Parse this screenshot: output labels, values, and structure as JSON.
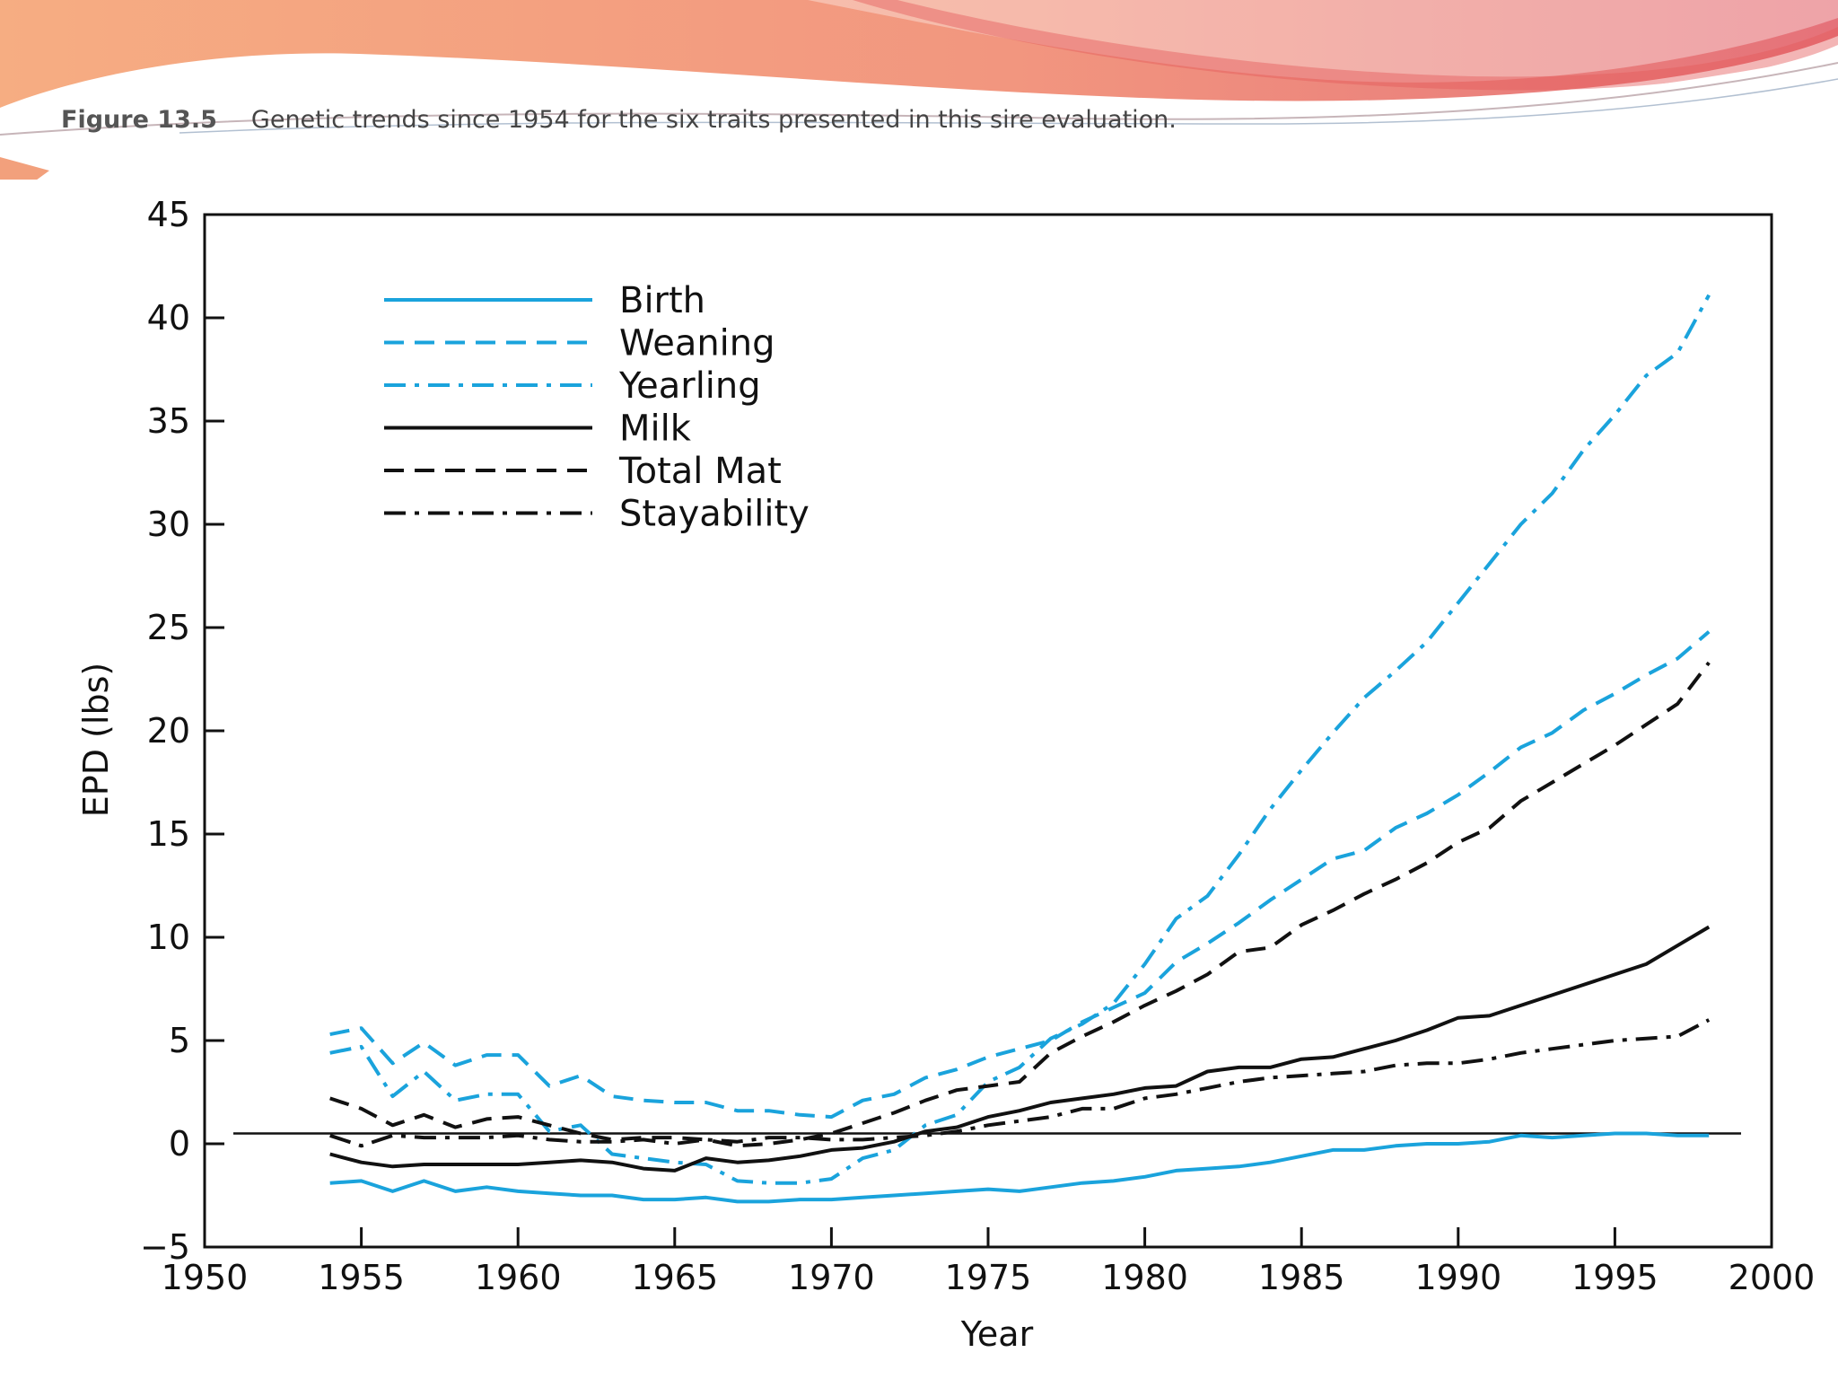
{
  "caption": {
    "label": "Figure 13.5",
    "text": "Genetic trends since 1954 for the six traits presented in this sire evaluation."
  },
  "colors": {
    "blue": "#1aa3dc",
    "black": "#111111",
    "banner_orange": "#f4a47d",
    "banner_red": "#e77a7a"
  },
  "chart_data": {
    "type": "line",
    "title": "",
    "xlabel": "Year",
    "ylabel": "EPD (lbs)",
    "xlim": [
      1950,
      2000
    ],
    "ylim": [
      -5,
      45
    ],
    "xticks": [
      1950,
      1955,
      1960,
      1965,
      1970,
      1975,
      1980,
      1985,
      1990,
      1995,
      2000
    ],
    "yticks": [
      -5,
      0,
      5,
      10,
      15,
      20,
      25,
      30,
      35,
      40,
      45
    ],
    "xtick_labels": [
      "1950",
      "1955",
      "1960",
      "1965",
      "1970",
      "1975",
      "1980",
      "1985",
      "1990",
      "1995",
      "2000"
    ],
    "ytick_labels": [
      "−5",
      "0",
      "5",
      "10",
      "15",
      "20",
      "25",
      "30",
      "35",
      "40",
      "45"
    ],
    "reference_line_y": 0.5,
    "grid": false,
    "legend_position": "top-left",
    "series": [
      {
        "name": "Birth",
        "color": "#1aa3dc",
        "style": "solid",
        "x": [
          1954,
          1955,
          1956,
          1957,
          1958,
          1959,
          1960,
          1961,
          1962,
          1963,
          1964,
          1965,
          1966,
          1967,
          1968,
          1969,
          1970,
          1971,
          1972,
          1973,
          1974,
          1975,
          1976,
          1977,
          1978,
          1979,
          1980,
          1981,
          1982,
          1983,
          1984,
          1985,
          1986,
          1987,
          1988,
          1989,
          1990,
          1991,
          1992,
          1993,
          1994,
          1995,
          1996,
          1997,
          1998
        ],
        "y": [
          -1.9,
          -1.8,
          -2.3,
          -1.8,
          -2.3,
          -2.1,
          -2.3,
          -2.4,
          -2.5,
          -2.5,
          -2.7,
          -2.7,
          -2.6,
          -2.8,
          -2.8,
          -2.7,
          -2.7,
          -2.6,
          -2.5,
          -2.4,
          -2.3,
          -2.2,
          -2.3,
          -2.1,
          -1.9,
          -1.8,
          -1.6,
          -1.3,
          -1.2,
          -1.1,
          -0.9,
          -0.6,
          -0.3,
          -0.3,
          -0.1,
          0.0,
          0.0,
          0.1,
          0.4,
          0.3,
          0.4,
          0.5,
          0.5,
          0.4,
          0.4
        ]
      },
      {
        "name": "Weaning",
        "color": "#1aa3dc",
        "style": "dashed",
        "x": [
          1954,
          1955,
          1956,
          1957,
          1958,
          1959,
          1960,
          1961,
          1962,
          1963,
          1964,
          1965,
          1966,
          1967,
          1968,
          1969,
          1970,
          1971,
          1972,
          1973,
          1974,
          1975,
          1976,
          1977,
          1978,
          1979,
          1980,
          1981,
          1982,
          1983,
          1984,
          1985,
          1986,
          1987,
          1988,
          1989,
          1990,
          1991,
          1992,
          1993,
          1994,
          1995,
          1996,
          1997,
          1998
        ],
        "y": [
          5.3,
          5.6,
          3.9,
          4.9,
          3.8,
          4.3,
          4.3,
          2.8,
          3.3,
          2.3,
          2.1,
          2.0,
          2.0,
          1.6,
          1.6,
          1.4,
          1.3,
          2.1,
          2.4,
          3.2,
          3.6,
          4.2,
          4.6,
          5.0,
          5.9,
          6.6,
          7.3,
          8.8,
          9.7,
          10.7,
          11.8,
          12.8,
          13.8,
          14.2,
          15.3,
          16.0,
          16.9,
          18.0,
          19.2,
          19.9,
          21.0,
          21.8,
          22.7,
          23.5,
          24.8
        ]
      },
      {
        "name": "Yearling",
        "color": "#1aa3dc",
        "style": "dashdot",
        "x": [
          1954,
          1955,
          1956,
          1957,
          1958,
          1959,
          1960,
          1961,
          1962,
          1963,
          1964,
          1965,
          1966,
          1967,
          1968,
          1969,
          1970,
          1971,
          1972,
          1973,
          1974,
          1975,
          1976,
          1977,
          1978,
          1979,
          1980,
          1981,
          1982,
          1983,
          1984,
          1985,
          1986,
          1987,
          1988,
          1989,
          1990,
          1991,
          1992,
          1993,
          1994,
          1995,
          1996,
          1997,
          1998
        ],
        "y": [
          4.4,
          4.7,
          2.3,
          3.5,
          2.1,
          2.4,
          2.4,
          0.6,
          0.9,
          -0.5,
          -0.7,
          -0.9,
          -1.0,
          -1.8,
          -1.9,
          -1.9,
          -1.7,
          -0.7,
          -0.3,
          0.9,
          1.4,
          3.0,
          3.7,
          5.1,
          5.8,
          6.8,
          8.7,
          10.9,
          12.0,
          14.0,
          16.2,
          18.1,
          19.9,
          21.6,
          22.9,
          24.3,
          26.2,
          28.1,
          30.0,
          31.5,
          33.6,
          35.3,
          37.2,
          38.3,
          41.1
        ]
      },
      {
        "name": "Milk",
        "color": "#111111",
        "style": "solid",
        "x": [
          1954,
          1955,
          1956,
          1957,
          1958,
          1959,
          1960,
          1961,
          1962,
          1963,
          1964,
          1965,
          1966,
          1967,
          1968,
          1969,
          1970,
          1971,
          1972,
          1973,
          1974,
          1975,
          1976,
          1977,
          1978,
          1979,
          1980,
          1981,
          1982,
          1983,
          1984,
          1985,
          1986,
          1987,
          1988,
          1989,
          1990,
          1991,
          1992,
          1993,
          1994,
          1995,
          1996,
          1997,
          1998
        ],
        "y": [
          -0.5,
          -0.9,
          -1.1,
          -1.0,
          -1.0,
          -1.0,
          -1.0,
          -0.9,
          -0.8,
          -0.9,
          -1.2,
          -1.3,
          -0.7,
          -0.9,
          -0.8,
          -0.6,
          -0.3,
          -0.2,
          0.1,
          0.6,
          0.8,
          1.3,
          1.6,
          2.0,
          2.2,
          2.4,
          2.7,
          2.8,
          3.5,
          3.7,
          3.7,
          4.1,
          4.2,
          4.6,
          5.0,
          5.5,
          6.1,
          6.2,
          6.7,
          7.2,
          7.7,
          8.2,
          8.7,
          9.6,
          10.5
        ]
      },
      {
        "name": "Total Mat",
        "color": "#111111",
        "style": "dashed",
        "x": [
          1954,
          1955,
          1956,
          1957,
          1958,
          1959,
          1960,
          1961,
          1962,
          1963,
          1964,
          1965,
          1966,
          1967,
          1968,
          1969,
          1970,
          1971,
          1972,
          1973,
          1974,
          1975,
          1976,
          1977,
          1978,
          1979,
          1980,
          1981,
          1982,
          1983,
          1984,
          1985,
          1986,
          1987,
          1988,
          1989,
          1990,
          1991,
          1992,
          1993,
          1994,
          1995,
          1996,
          1997,
          1998
        ],
        "y": [
          2.2,
          1.7,
          0.9,
          1.4,
          0.8,
          1.2,
          1.3,
          0.9,
          0.5,
          0.2,
          0.3,
          0.3,
          0.2,
          -0.1,
          0.0,
          0.2,
          0.5,
          1.0,
          1.5,
          2.1,
          2.6,
          2.8,
          3.0,
          4.4,
          5.2,
          5.9,
          6.7,
          7.4,
          8.2,
          9.3,
          9.5,
          10.6,
          11.3,
          12.1,
          12.8,
          13.6,
          14.6,
          15.3,
          16.6,
          17.5,
          18.4,
          19.3,
          20.3,
          21.3,
          23.3
        ]
      },
      {
        "name": "Stayability",
        "color": "#111111",
        "style": "dashdot",
        "x": [
          1954,
          1955,
          1956,
          1957,
          1958,
          1959,
          1960,
          1961,
          1962,
          1963,
          1964,
          1965,
          1966,
          1967,
          1968,
          1969,
          1970,
          1971,
          1972,
          1973,
          1974,
          1975,
          1976,
          1977,
          1978,
          1979,
          1980,
          1981,
          1982,
          1983,
          1984,
          1985,
          1986,
          1987,
          1988,
          1989,
          1990,
          1991,
          1992,
          1993,
          1994,
          1995,
          1996,
          1997,
          1998
        ],
        "y": [
          0.4,
          -0.1,
          0.4,
          0.3,
          0.3,
          0.3,
          0.4,
          0.2,
          0.1,
          0.1,
          0.2,
          0.0,
          0.2,
          0.1,
          0.3,
          0.3,
          0.2,
          0.2,
          0.3,
          0.4,
          0.6,
          0.9,
          1.1,
          1.3,
          1.7,
          1.7,
          2.2,
          2.4,
          2.7,
          3.0,
          3.2,
          3.3,
          3.4,
          3.5,
          3.8,
          3.9,
          3.9,
          4.1,
          4.4,
          4.6,
          4.8,
          5.0,
          5.1,
          5.2,
          6.0
        ]
      }
    ]
  }
}
